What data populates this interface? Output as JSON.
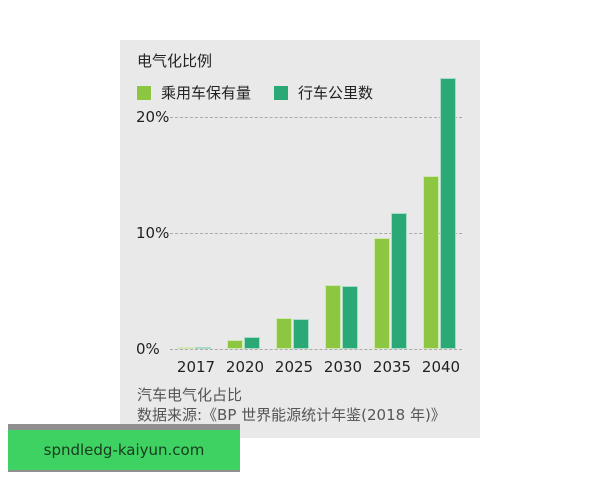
{
  "chart_data": {
    "type": "bar",
    "title": "电气化比例",
    "xlabel": "",
    "ylabel": "",
    "ylim": [
      0,
      25
    ],
    "yticks": [
      "0%",
      "10%",
      "20%"
    ],
    "categories": [
      "2017",
      "2020",
      "2025",
      "2030",
      "2035",
      "2040"
    ],
    "series": [
      {
        "name": "乘用车保有量",
        "color": "#8dc641",
        "values": [
          0.2,
          0.8,
          2.7,
          5.5,
          9.6,
          14.9
        ]
      },
      {
        "name": "行车公里数",
        "color": "#2aa876",
        "values": [
          0.2,
          1.0,
          2.6,
          5.4,
          11.7,
          23.4
        ]
      }
    ],
    "grid": "horizontal dashed",
    "legend_position": "top-left"
  },
  "captions": {
    "line1": "汽车电气化占比",
    "line2": "数据来源:《BP 世界能源统计年鉴(2018 年)》"
  },
  "watermark": {
    "text": "spndledg-kaiyun.com"
  },
  "colors": {
    "panel_bg": "#e9e9e9",
    "series1": "#8dc641",
    "series2": "#2aa876",
    "watermark_bg": "#39d660"
  }
}
